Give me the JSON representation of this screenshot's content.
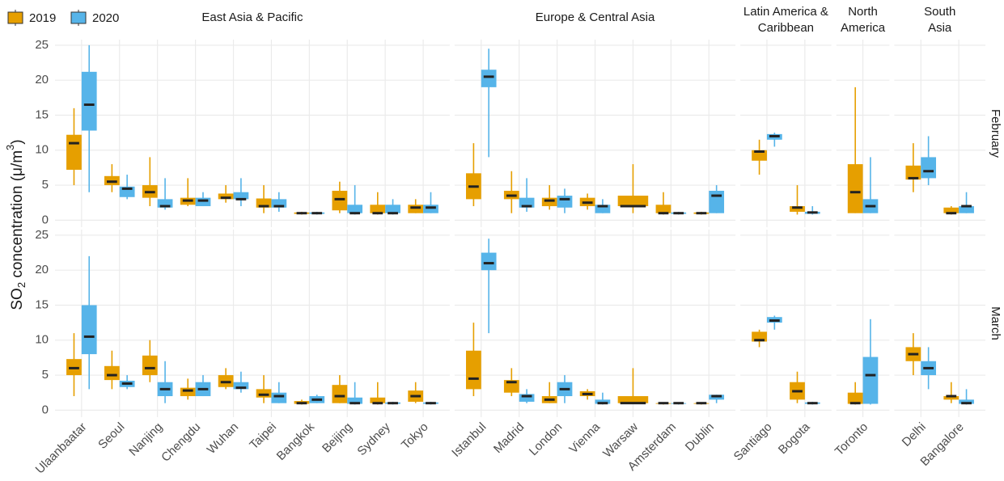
{
  "chart_data": {
    "type": "box",
    "y_label": [
      "SO",
      "2",
      " concentration (μ/m",
      "3",
      ")"
    ],
    "rows": [
      "February",
      "March"
    ],
    "facets": [
      {
        "title": [
          "East Asia & Pacific"
        ],
        "categories": [
          "Ulaanbaatar",
          "Seoul",
          "Nanjing",
          "Chengdu",
          "Wuhan",
          "Taipei",
          "Bangkok",
          "Beijing",
          "Sydney",
          "Tokyo"
        ]
      },
      {
        "title": [
          "Europe & Central Asia"
        ],
        "categories": [
          "Istanbul",
          "Madrid",
          "London",
          "Vienna",
          "Warsaw",
          "Amsterdam",
          "Dublin"
        ]
      },
      {
        "title": [
          "Latin America &",
          "Caribbean"
        ],
        "categories": [
          "Santiago",
          "Bogota"
        ]
      },
      {
        "title": [
          "North",
          "America"
        ],
        "categories": [
          "Toronto"
        ]
      },
      {
        "title": [
          "South",
          "Asia"
        ],
        "categories": [
          "Delhi",
          "Bangalore"
        ]
      }
    ],
    "ylim": [
      -1,
      25.8
    ],
    "yticks": [
      0,
      5,
      10,
      15,
      20,
      25
    ],
    "grid": true,
    "series": [
      {
        "name": "2019",
        "color": "#E69F00",
        "values": [
          [
            [
              [
                5,
                7.2,
                11,
                12.2,
                16
              ],
              [
                4,
                5,
                5.5,
                6.3,
                8
              ],
              [
                2,
                3.2,
                4,
                5,
                9
              ],
              [
                2,
                2.2,
                2.8,
                3.2,
                6
              ],
              [
                2.5,
                3,
                3.2,
                3.8,
                5
              ],
              [
                1,
                1.8,
                2,
                3.1,
                5
              ],
              [
                0.8,
                0.9,
                1,
                1.1,
                1.2
              ],
              [
                1,
                1.4,
                3,
                4.2,
                5.5
              ],
              [
                0.8,
                1,
                1,
                2.2,
                4
              ],
              [
                1,
                1,
                1.8,
                2.2,
                3
              ]
            ],
            [
              [
                2,
                3,
                4.8,
                6.7,
                11
              ],
              [
                1,
                3,
                3.5,
                4.2,
                7
              ],
              [
                1.5,
                2,
                2.8,
                3.2,
                5
              ],
              [
                1.5,
                2,
                2.5,
                3.2,
                3.8
              ],
              [
                1,
                2,
                2,
                3.5,
                8
              ],
              [
                0.8,
                1,
                1,
                2.2,
                4
              ],
              [
                0.8,
                0.9,
                1,
                1.1,
                1.2
              ]
            ],
            [
              [
                6.5,
                8.5,
                9.8,
                10,
                11.5
              ],
              [
                0.8,
                1.2,
                1.8,
                2,
                5
              ]
            ],
            [
              [
                1,
                1,
                4,
                8,
                19
              ]
            ],
            [
              [
                4,
                5.8,
                6,
                7.8,
                11
              ],
              [
                0.8,
                1,
                1,
                1.8,
                2
              ]
            ]
          ],
          [
            [
              [
                2,
                5,
                6,
                7.3,
                11
              ],
              [
                3,
                4.3,
                5,
                6.3,
                8.5
              ],
              [
                4,
                5,
                6,
                7.8,
                10
              ],
              [
                1.5,
                2,
                2.8,
                3.2,
                4.5
              ],
              [
                3,
                3.3,
                4,
                5,
                6
              ],
              [
                1,
                1.8,
                2.2,
                3,
                5
              ],
              [
                0.8,
                0.9,
                1,
                1.3,
                1.5
              ],
              [
                1,
                1,
                2,
                3.6,
                5
              ],
              [
                0.8,
                1,
                1,
                1.8,
                4
              ],
              [
                1,
                1.2,
                2,
                2.8,
                4
              ]
            ],
            [
              [
                2,
                3,
                4.5,
                8.5,
                12.5
              ],
              [
                2,
                2.5,
                4,
                4.3,
                6
              ],
              [
                1,
                1,
                1.5,
                2,
                4
              ],
              [
                1.5,
                2,
                2.3,
                2.7,
                3
              ],
              [
                1,
                1,
                1,
                2,
                6
              ],
              [
                0.8,
                0.9,
                1,
                1,
                1.1
              ],
              [
                0.8,
                0.9,
                1,
                1,
                1.1
              ]
            ],
            [
              [
                9,
                9.8,
                10,
                11.2,
                11.5
              ],
              [
                1,
                1.5,
                2.7,
                4,
                5.5
              ]
            ],
            [
              [
                0.8,
                0.9,
                1,
                2.5,
                4
              ]
            ],
            [
              [
                5,
                7,
                8,
                9,
                11
              ],
              [
                1,
                1.5,
                2,
                2,
                4
              ]
            ]
          ]
        ]
      },
      {
        "name": "2020",
        "color": "#56B4E9",
        "values": [
          [
            [
              [
                4,
                12.8,
                16.5,
                21.2,
                25
              ],
              [
                3,
                3.3,
                4.5,
                4.8,
                6.5
              ],
              [
                1.5,
                1.8,
                2,
                3,
                6
              ],
              [
                2,
                2,
                2.8,
                3.2,
                4
              ],
              [
                2,
                3,
                3,
                4,
                6
              ],
              [
                1.2,
                1.8,
                2,
                3,
                4
              ],
              [
                0.8,
                0.9,
                1,
                1.1,
                1.2
              ],
              [
                0.8,
                1,
                1,
                2.2,
                5
              ],
              [
                0.8,
                1,
                1,
                2.2,
                3
              ],
              [
                1,
                1,
                1.8,
                2.2,
                4
              ]
            ],
            [
              [
                9,
                19,
                20.5,
                21.5,
                24.5
              ],
              [
                1.2,
                1.8,
                2,
                3.2,
                6
              ],
              [
                1,
                1.8,
                3,
                3.5,
                4.5
              ],
              [
                1,
                1,
                2,
                2.2,
                3
              ],
              null,
              [
                0.8,
                0.9,
                1,
                1.1,
                1.2
              ],
              [
                1,
                1,
                3.5,
                4.2,
                5
              ]
            ],
            [
              [
                10.5,
                11.5,
                12,
                12.3,
                12.5
              ],
              [
                0.8,
                0.9,
                1.1,
                1.2,
                2
              ]
            ],
            [
              [
                1,
                1,
                2,
                3,
                9
              ]
            ],
            [
              [
                5,
                6,
                7,
                9,
                12
              ],
              [
                1,
                1,
                2,
                2,
                4
              ]
            ]
          ],
          [
            [
              [
                3,
                8,
                10.5,
                15,
                22
              ],
              [
                3,
                3.3,
                3.8,
                4.2,
                5
              ],
              [
                1,
                2,
                3,
                4,
                7
              ],
              [
                2,
                2,
                3,
                4,
                5
              ],
              [
                2.5,
                3,
                3.2,
                4,
                5.5
              ],
              [
                1,
                1,
                2,
                2.5,
                4
              ],
              [
                1,
                1,
                1.5,
                2,
                2.2
              ],
              [
                0.8,
                0.9,
                1,
                1.8,
                4
              ],
              [
                0.8,
                0.9,
                1,
                1.1,
                1.2
              ],
              [
                0.8,
                0.9,
                1,
                1.1,
                1.2
              ]
            ],
            [
              [
                11,
                20,
                21,
                22.5,
                24.5
              ],
              [
                1,
                1.2,
                2,
                2.3,
                3
              ],
              [
                1,
                2,
                3,
                4,
                5
              ],
              [
                0.8,
                0.9,
                1,
                1.5,
                2.5
              ],
              null,
              [
                0.8,
                0.9,
                1,
                1,
                1.1
              ],
              [
                1,
                1.5,
                2,
                2.2,
                2.2
              ]
            ],
            [
              [
                11.5,
                12.5,
                12.8,
                13.3,
                13.5
              ],
              [
                0.8,
                0.9,
                1,
                1.1,
                1.2
              ]
            ],
            [
              [
                0.8,
                0.9,
                5,
                7.6,
                13
              ]
            ],
            [
              [
                3,
                5,
                6,
                7,
                9
              ],
              [
                0.8,
                0.9,
                1,
                1.5,
                3
              ]
            ]
          ]
        ]
      }
    ]
  }
}
